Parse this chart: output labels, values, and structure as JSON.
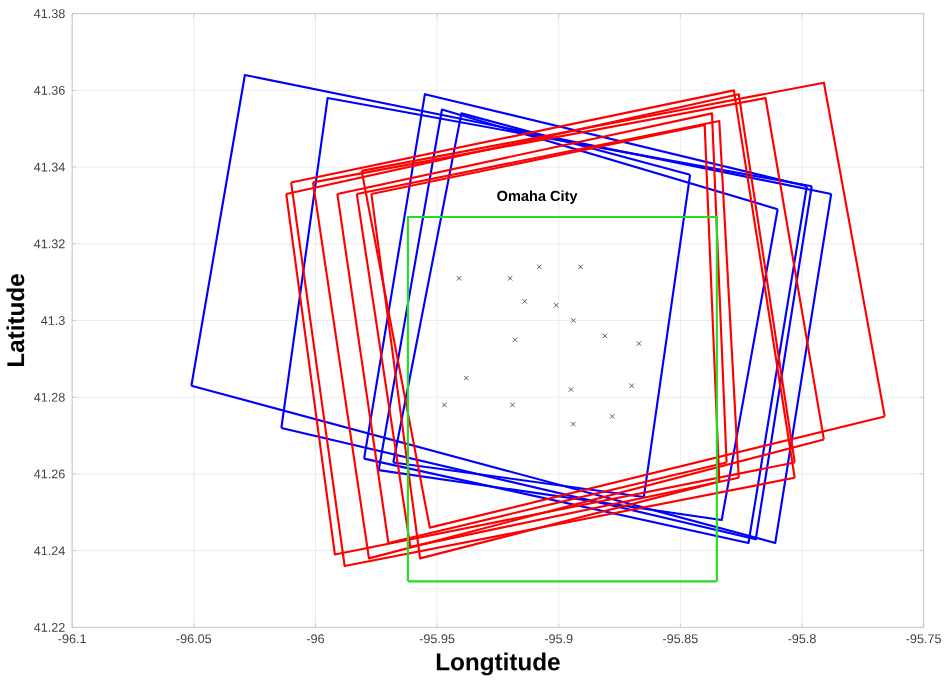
{
  "chart_data": {
    "type": "line",
    "xlabel": "Longtitude",
    "ylabel": "Latitude",
    "xlim": [
      -96.1,
      -95.75
    ],
    "xticks": [
      -96.1,
      -96.05,
      -96,
      -95.95,
      -95.9,
      -95.85,
      -95.8,
      -95.75
    ],
    "ylim": [
      41.22,
      41.38
    ],
    "yticks": [
      41.22,
      41.24,
      41.26,
      41.28,
      41.3,
      41.32,
      41.34,
      41.36,
      41.38
    ],
    "grid": true,
    "line_style": "solid",
    "annotations": [
      "Omaha City"
    ],
    "series": [
      {
        "color": "#0000ff",
        "x": [
          -96.051,
          -96.029,
          -95.788
        ],
        "values": [
          41.283,
          41.364,
          41.333
        ]
      },
      {
        "color": "#0000ff",
        "x": [
          -96.051,
          -95.811,
          -95.788
        ],
        "values": [
          41.283,
          41.242,
          41.333
        ]
      },
      {
        "color": "#0000ff",
        "x": [
          -96.014,
          -95.995,
          -95.796
        ],
        "values": [
          41.272,
          41.358,
          41.335
        ]
      },
      {
        "color": "#0000ff",
        "x": [
          -96.014,
          -95.819,
          -95.796
        ],
        "values": [
          41.272,
          41.243,
          41.335
        ]
      },
      {
        "color": "#0000ff",
        "x": [
          -95.98,
          -95.955,
          -95.798
        ],
        "values": [
          41.264,
          41.359,
          41.335
        ]
      },
      {
        "color": "#0000ff",
        "x": [
          -95.98,
          -95.822,
          -95.798
        ],
        "values": [
          41.264,
          41.242,
          41.335
        ]
      },
      {
        "color": "#0000ff",
        "x": [
          -95.974,
          -95.948,
          -95.81
        ],
        "values": [
          41.261,
          41.355,
          41.329
        ]
      },
      {
        "color": "#0000ff",
        "x": [
          -95.974,
          -95.833,
          -95.81
        ],
        "values": [
          41.261,
          41.248,
          41.329
        ]
      },
      {
        "color": "#0000ff",
        "x": [
          -95.968,
          -95.94,
          -95.846
        ],
        "values": [
          41.263,
          41.354,
          41.338
        ]
      },
      {
        "color": "#0000ff",
        "x": [
          -95.968,
          -95.865,
          -95.846
        ],
        "values": [
          41.263,
          41.254,
          41.338
        ]
      },
      {
        "color": "#ff0000",
        "x": [
          -96.01,
          -95.828,
          -95.803
        ],
        "values": [
          41.336,
          41.36,
          41.259
        ]
      },
      {
        "color": "#ff0000",
        "x": [
          -96.01,
          -95.988,
          -95.803
        ],
        "values": [
          41.336,
          41.236,
          41.259
        ]
      },
      {
        "color": "#ff0000",
        "x": [
          -96.012,
          -95.826,
          -95.803
        ],
        "values": [
          41.333,
          41.359,
          41.263
        ]
      },
      {
        "color": "#ff0000",
        "x": [
          -96.012,
          -95.992,
          -95.803
        ],
        "values": [
          41.333,
          41.239,
          41.263
        ]
      },
      {
        "color": "#ff0000",
        "x": [
          -96.001,
          -95.815,
          -95.791
        ],
        "values": [
          41.336,
          41.358,
          41.269
        ]
      },
      {
        "color": "#ff0000",
        "x": [
          -96.001,
          -95.978,
          -95.791
        ],
        "values": [
          41.336,
          41.238,
          41.269
        ]
      },
      {
        "color": "#ff0000",
        "x": [
          -95.981,
          -95.791,
          -95.766
        ],
        "values": [
          41.339,
          41.362,
          41.275
        ]
      },
      {
        "color": "#ff0000",
        "x": [
          -95.981,
          -95.953,
          -95.766
        ],
        "values": [
          41.339,
          41.246,
          41.275
        ]
      },
      {
        "color": "#ff0000",
        "x": [
          -95.991,
          -95.837,
          -95.831
        ],
        "values": [
          41.333,
          41.354,
          41.263
        ]
      },
      {
        "color": "#ff0000",
        "x": [
          -95.991,
          -95.97,
          -95.831
        ],
        "values": [
          41.333,
          41.242,
          41.263
        ]
      },
      {
        "color": "#ff0000",
        "x": [
          -95.983,
          -95.834,
          -95.826
        ],
        "values": [
          41.333,
          41.352,
          41.259
        ]
      },
      {
        "color": "#ff0000",
        "x": [
          -95.983,
          -95.961,
          -95.826
        ],
        "values": [
          41.333,
          41.241,
          41.259
        ]
      },
      {
        "color": "#ff0000",
        "x": [
          -95.977,
          -95.84,
          -95.834
        ],
        "values": [
          41.333,
          41.351,
          41.258
        ]
      },
      {
        "color": "#ff0000",
        "x": [
          -95.977,
          -95.957,
          -95.834
        ],
        "values": [
          41.333,
          41.238,
          41.258
        ]
      },
      {
        "color": "#22dd22",
        "x": [
          -95.962,
          -95.962,
          -95.835,
          -95.835
        ],
        "values": [
          41.232,
          41.327,
          41.327,
          41.232
        ]
      },
      {
        "color": "#22dd22",
        "x": [
          -95.962,
          -95.835
        ],
        "values": [
          41.232,
          41.232
        ]
      },
      {
        "type": "scatter",
        "color": "#555555",
        "marker": "cross",
        "x": [
          -95.941,
          -95.92,
          -95.908,
          -95.891,
          -95.914,
          -95.901,
          -95.894,
          -95.918,
          -95.881,
          -95.867,
          -95.938,
          -95.947,
          -95.919,
          -95.895,
          -95.87,
          -95.894,
          -95.878
        ],
        "values": [
          41.311,
          41.311,
          41.314,
          41.314,
          41.305,
          41.304,
          41.3,
          41.295,
          41.296,
          41.294,
          41.285,
          41.278,
          41.278,
          41.282,
          41.283,
          41.273,
          41.275
        ]
      }
    ]
  }
}
